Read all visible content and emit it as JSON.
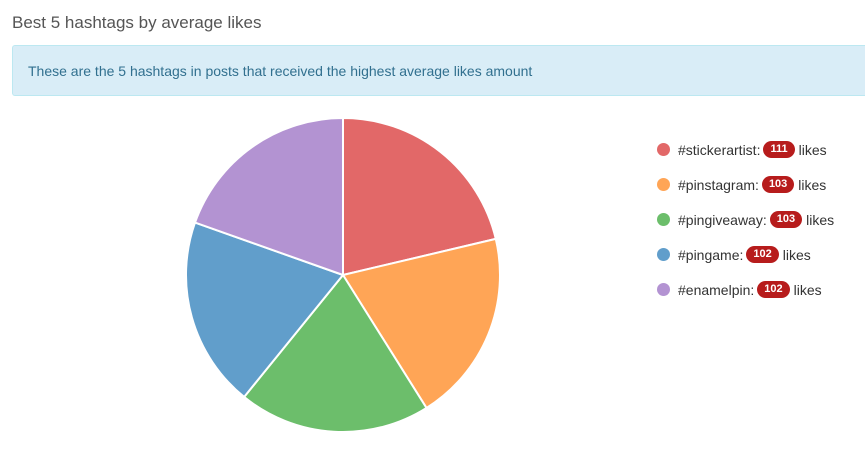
{
  "page_title": "Best 5 hashtags by average likes",
  "info_text": "These are the 5 hashtags in posts that received the highest average likes amount",
  "likes_word": "likes",
  "chart_data": {
    "type": "pie",
    "categories": [
      "#stickerartist:",
      "#pinstagram:",
      "#pingiveaway:",
      "#pingame:",
      "#enamelpin:"
    ],
    "values": [
      111,
      103,
      103,
      102,
      102
    ],
    "colors": [
      "#e26868",
      "#ffa556",
      "#6cbe6b",
      "#619ecb",
      "#b393d2"
    ],
    "legend_position": "right"
  }
}
